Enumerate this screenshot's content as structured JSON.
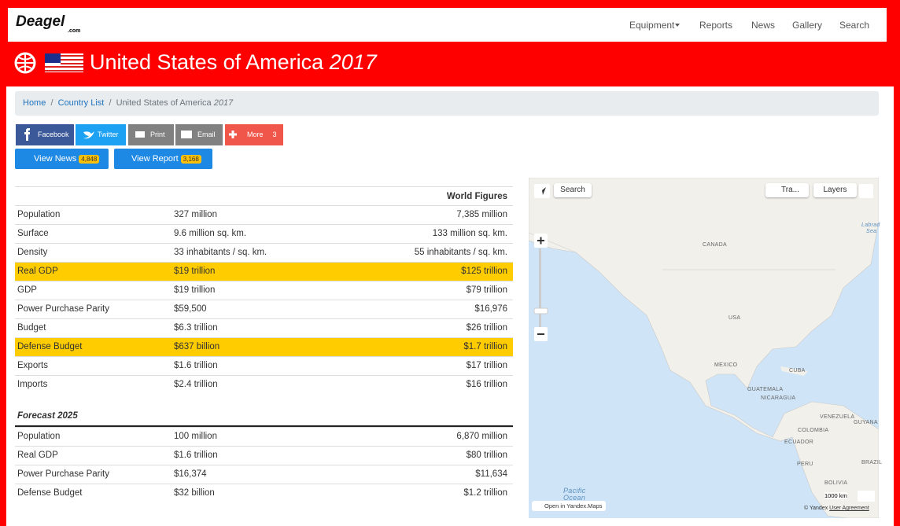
{
  "nav": {
    "logo": "Deagel",
    "logo_sub": ".com",
    "items": [
      "Equipment",
      "Reports",
      "News",
      "Gallery",
      "Search"
    ]
  },
  "header": {
    "title": "United States of America",
    "year": "2017"
  },
  "breadcrumb": {
    "items": [
      "Home",
      "Country List"
    ],
    "current": "United States of America",
    "current_year": "2017"
  },
  "share": {
    "items": [
      "Facebook",
      "Twitter",
      "Print",
      "Email",
      "More"
    ],
    "count": 3
  },
  "buttons": [
    {
      "label": "View News",
      "count": "4,848"
    },
    {
      "label": "View Report",
      "count": "3,168"
    }
  ],
  "table": {
    "header": "World Figures",
    "highlight_rows": [
      3,
      7
    ],
    "highlight_color": "#ffcc00",
    "rows": [
      [
        "Population",
        "327 million",
        "7,385 million"
      ],
      [
        "Surface",
        "9.6 million sq. km.",
        "133 million sq. km."
      ],
      [
        "Density",
        "33 inhabitants / sq. km.",
        "55 inhabitants / sq. km."
      ],
      [
        "Real GDP",
        "$19 trillion",
        "$125 trillion"
      ],
      [
        "GDP",
        "$19 trillion",
        "$79 trillion"
      ],
      [
        "Power Purchase Parity",
        "$59,500",
        "$16,976"
      ],
      [
        "Budget",
        "$6.3 trillion",
        "$26 trillion"
      ],
      [
        "Defense Budget",
        "$637 billion",
        "$1.7 trillion"
      ],
      [
        "Exports",
        "$1.6 trillion",
        "$17 trillion"
      ],
      [
        "Imports",
        "$2.4 trillion",
        "$16 trillion"
      ]
    ]
  },
  "forecast": {
    "title": "Forecast 2025",
    "rows": [
      [
        "Population",
        "100 million",
        "6,870 million"
      ],
      [
        "Real GDP",
        "$1.6 trillion",
        "$80 trillion"
      ],
      [
        "Power Purchase Parity",
        "$16,374",
        "$11,634"
      ],
      [
        "Defense Budget",
        "$32 billion",
        "$1.2 trillion"
      ]
    ]
  },
  "map": {
    "search": "Search",
    "traffic": "Tra...",
    "layers": "Layers",
    "scale": "1000 km",
    "open": "Open in Yandex.Maps",
    "copyright": "© Yandex",
    "agreement": "User Agreement",
    "labels": [
      "Labrad",
      "Sea",
      "CANADA",
      "USA",
      "MEXICO",
      "CUBA",
      "GUATEMALA",
      "NICARAGUA",
      "VENEZUELA",
      "GUYANA",
      "COLOMBIA",
      "ECUADOR",
      "PERU",
      "BRAZIL",
      "BOLIVIA",
      "Pacific",
      "Ocean"
    ]
  }
}
